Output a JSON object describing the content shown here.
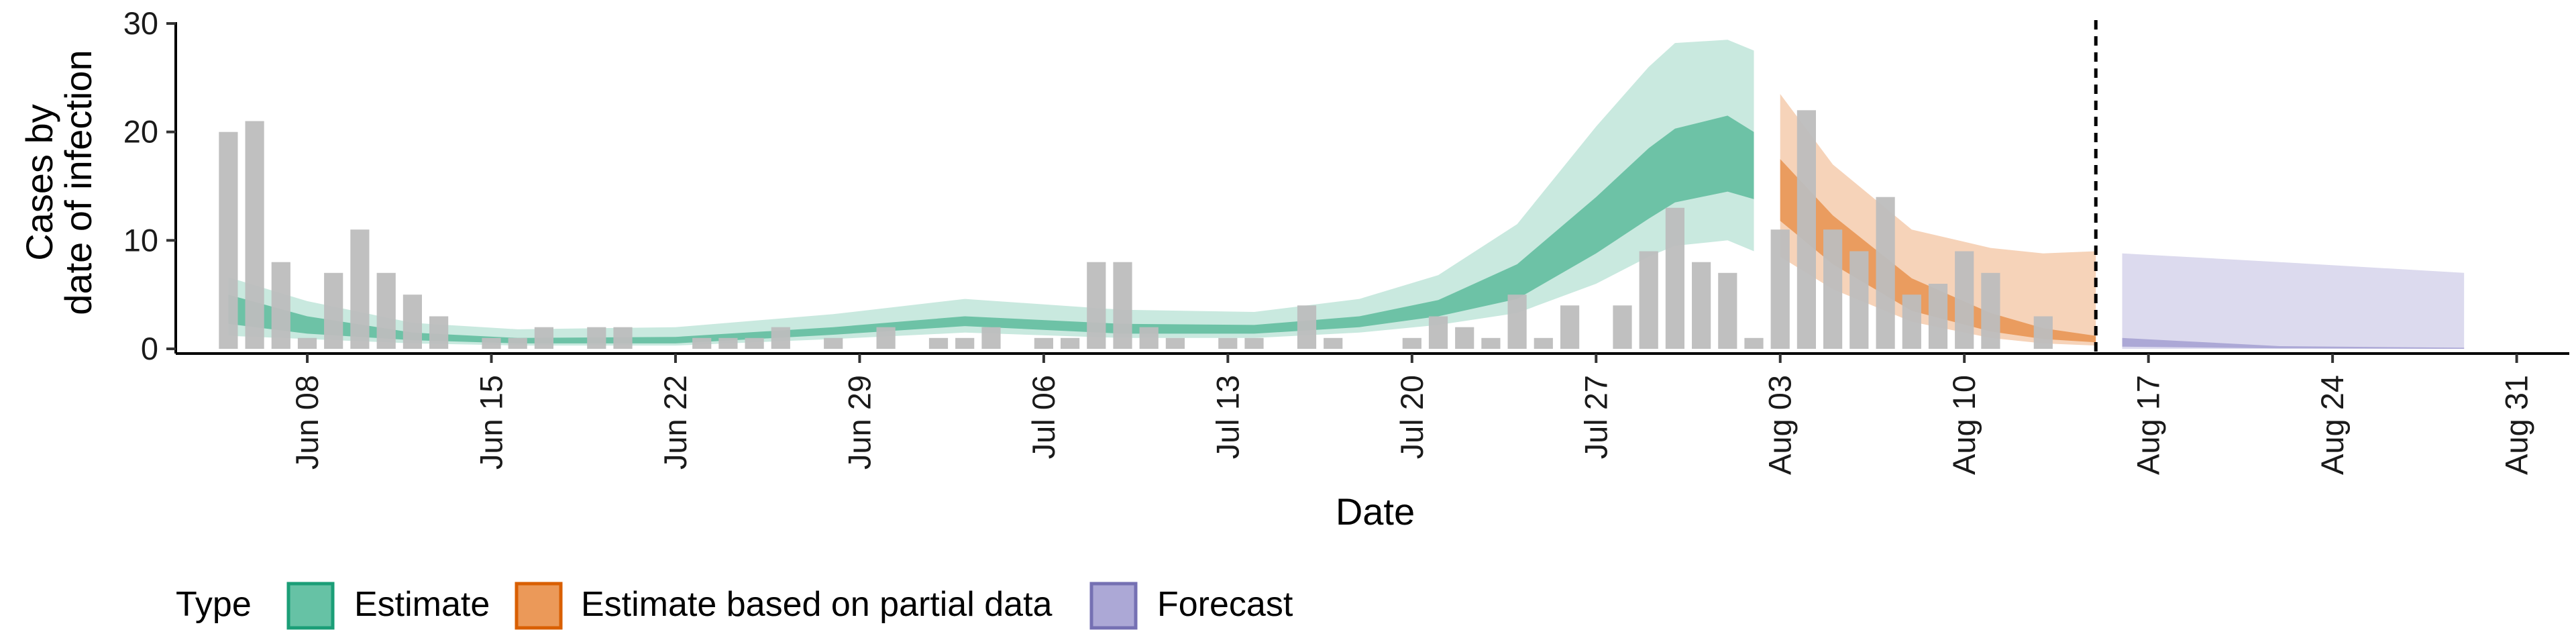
{
  "chart_data": {
    "type": "bar",
    "xlabel": "Date",
    "ylabel_lines": [
      "Cases by",
      "date of infection"
    ],
    "ylim": [
      0,
      30
    ],
    "yticks": [
      0,
      10,
      20,
      30
    ],
    "x_range": [
      "2024-06-03",
      "2024-09-02"
    ],
    "x_ticks": [
      {
        "date": "2024-06-08",
        "label": "Jun 08"
      },
      {
        "date": "2024-06-15",
        "label": "Jun 15"
      },
      {
        "date": "2024-06-22",
        "label": "Jun 22"
      },
      {
        "date": "2024-06-29",
        "label": "Jun 29"
      },
      {
        "date": "2024-07-06",
        "label": "Jul 06"
      },
      {
        "date": "2024-07-13",
        "label": "Jul 13"
      },
      {
        "date": "2024-07-20",
        "label": "Jul 20"
      },
      {
        "date": "2024-07-27",
        "label": "Jul 27"
      },
      {
        "date": "2024-08-03",
        "label": "Aug 03"
      },
      {
        "date": "2024-08-10",
        "label": "Aug 10"
      },
      {
        "date": "2024-08-17",
        "label": "Aug 17"
      },
      {
        "date": "2024-08-24",
        "label": "Aug 24"
      },
      {
        "date": "2024-08-31",
        "label": "Aug 31"
      }
    ],
    "vline_date": "2024-08-15",
    "bar_color": "#bdbdbd",
    "bars": {
      "start": "2024-06-05",
      "values": [
        20,
        21,
        8,
        1,
        7,
        11,
        7,
        5,
        3,
        0,
        1,
        1,
        2,
        0,
        2,
        2,
        0,
        0,
        1,
        1,
        1,
        2,
        0,
        1,
        0,
        2,
        0,
        1,
        1,
        2,
        0,
        1,
        1,
        8,
        8,
        2,
        1,
        0,
        1,
        1,
        0,
        4,
        1,
        0,
        0,
        1,
        3,
        2,
        1,
        5,
        1,
        4,
        0,
        4,
        9,
        13,
        8,
        7,
        1,
        11,
        22,
        11,
        9,
        14,
        5,
        6,
        9,
        7,
        0,
        3
      ]
    },
    "series": [
      {
        "name": "Estimate",
        "color": "#1b9e77",
        "fill": "#6dc2a6",
        "outer_fill": "#c9e9df",
        "bands": [
          {
            "date": "2024-06-05",
            "lo90": 1.2,
            "lo50": 2.3,
            "hi50": 5.0,
            "hi90": 6.6
          },
          {
            "date": "2024-06-08",
            "lo90": 0.9,
            "lo50": 1.4,
            "hi50": 3.0,
            "hi90": 4.4
          },
          {
            "date": "2024-06-12",
            "lo90": 0.5,
            "lo50": 0.8,
            "hi50": 1.5,
            "hi90": 2.4
          },
          {
            "date": "2024-06-16",
            "lo90": 0.3,
            "lo50": 0.5,
            "hi50": 1.0,
            "hi90": 1.8
          },
          {
            "date": "2024-06-22",
            "lo90": 0.3,
            "lo50": 0.5,
            "hi50": 1.1,
            "hi90": 2.0
          },
          {
            "date": "2024-06-28",
            "lo90": 0.9,
            "lo50": 1.3,
            "hi50": 2.0,
            "hi90": 3.2
          },
          {
            "date": "2024-07-03",
            "lo90": 1.5,
            "lo50": 2.1,
            "hi50": 3.0,
            "hi90": 4.6
          },
          {
            "date": "2024-07-09",
            "lo90": 1.0,
            "lo50": 1.4,
            "hi50": 2.3,
            "hi90": 3.6
          },
          {
            "date": "2024-07-14",
            "lo90": 1.0,
            "lo50": 1.4,
            "hi50": 2.2,
            "hi90": 3.4
          },
          {
            "date": "2024-07-18",
            "lo90": 1.5,
            "lo50": 2.0,
            "hi50": 3.0,
            "hi90": 4.6
          },
          {
            "date": "2024-07-21",
            "lo90": 2.2,
            "lo50": 3.0,
            "hi50": 4.5,
            "hi90": 6.8
          },
          {
            "date": "2024-07-24",
            "lo90": 3.3,
            "lo50": 4.6,
            "hi50": 7.8,
            "hi90": 11.5
          },
          {
            "date": "2024-07-27",
            "lo90": 6.0,
            "lo50": 8.8,
            "hi50": 14.0,
            "hi90": 20.5
          },
          {
            "date": "2024-07-29",
            "lo90": 8.5,
            "lo50": 12.0,
            "hi50": 18.5,
            "hi90": 26.0
          },
          {
            "date": "2024-07-30",
            "lo90": 9.5,
            "lo50": 13.5,
            "hi50": 20.3,
            "hi90": 28.2
          },
          {
            "date": "2024-08-01",
            "lo90": 10.0,
            "lo50": 14.5,
            "hi50": 21.5,
            "hi90": 28.5
          },
          {
            "date": "2024-08-02",
            "lo90": 9.0,
            "lo50": 13.8,
            "hi50": 20.0,
            "hi90": 27.5
          }
        ]
      },
      {
        "name": "Estimate based on partial data",
        "color": "#d95f02",
        "fill": "#ea9c5f",
        "outer_fill": "#f6d3b9",
        "bands": [
          {
            "date": "2024-08-03",
            "lo90": 8.5,
            "lo50": 11.8,
            "hi50": 17.5,
            "hi90": 23.5
          },
          {
            "date": "2024-08-05",
            "lo90": 5.5,
            "lo50": 7.8,
            "hi50": 12.3,
            "hi90": 17.0
          },
          {
            "date": "2024-08-08",
            "lo90": 2.5,
            "lo50": 3.5,
            "hi50": 6.5,
            "hi90": 11.0
          },
          {
            "date": "2024-08-11",
            "lo90": 1.0,
            "lo50": 1.6,
            "hi50": 3.3,
            "hi90": 9.3
          },
          {
            "date": "2024-08-13",
            "lo90": 0.5,
            "lo50": 0.9,
            "hi50": 1.9,
            "hi90": 8.8
          },
          {
            "date": "2024-08-15",
            "lo90": 0.3,
            "lo50": 0.6,
            "hi50": 1.2,
            "hi90": 9.0
          }
        ]
      },
      {
        "name": "Forecast",
        "color": "#7570b3",
        "fill": "#aca8d6",
        "outer_fill": "#dcdaee",
        "bands": [
          {
            "date": "2024-08-16",
            "lo90": 0.0,
            "lo50": 0.2,
            "hi50": 1.0,
            "hi90": 8.8
          },
          {
            "date": "2024-08-22",
            "lo90": 0.0,
            "lo50": 0.05,
            "hi50": 0.25,
            "hi90": 8.0
          },
          {
            "date": "2024-08-29",
            "lo90": 0.0,
            "lo50": 0.0,
            "hi50": 0.1,
            "hi90": 7.0
          }
        ]
      }
    ]
  },
  "legend": {
    "title": "Type",
    "items": [
      {
        "label": "Estimate",
        "fill": "#66c2a5",
        "border": "#1b9e77"
      },
      {
        "label": "Estimate based on partial data",
        "fill": "#eb9959",
        "border": "#d95f02"
      },
      {
        "label": "Forecast",
        "fill": "#aca8d6",
        "border": "#7570b3"
      }
    ]
  }
}
